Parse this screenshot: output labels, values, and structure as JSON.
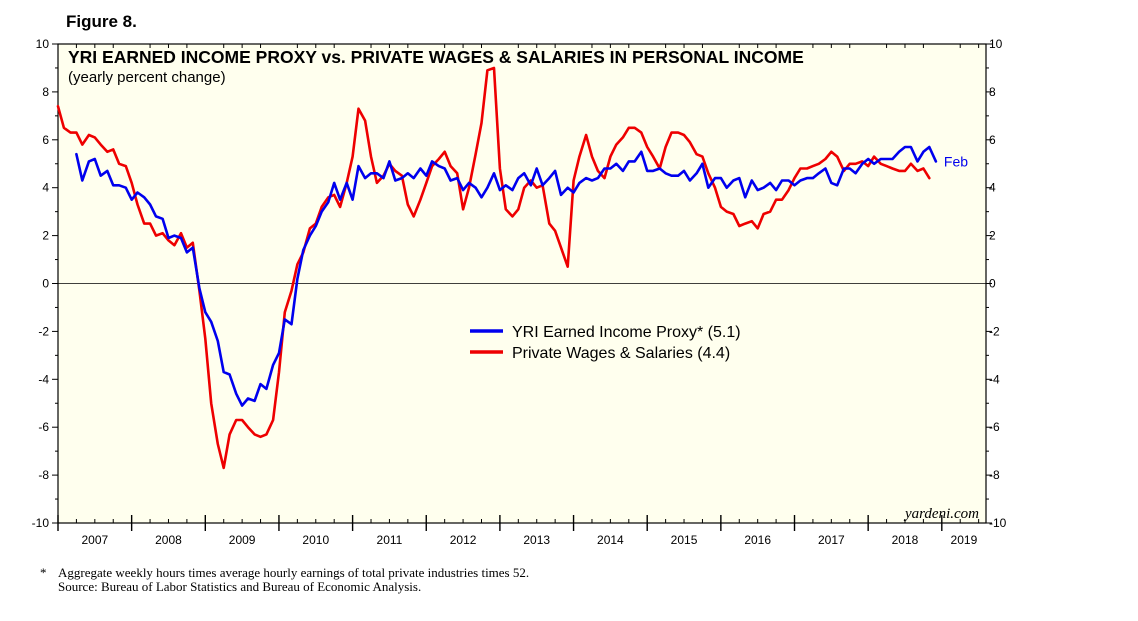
{
  "figure_label": "Figure 8.",
  "footnote": {
    "marker": "*",
    "note": "Aggregate weekly hours times average hourly earnings of total private industries times 52.",
    "source": "Source: Bureau of Labor Statistics and Bureau of Economic Analysis."
  },
  "chart_data": {
    "type": "line",
    "title": "YRI EARNED INCOME PROXY vs. PRIVATE WAGES & SALARIES IN PERSONAL INCOME",
    "subtitle": "(yearly percent change)",
    "xlabel": "",
    "ylabel": "",
    "ylim": [
      -10,
      10
    ],
    "y_ticks": [
      -10,
      -8,
      -6,
      -4,
      -2,
      0,
      2,
      4,
      6,
      8,
      10
    ],
    "xlim": [
      2007.0,
      2019.6
    ],
    "x_tick_labels": [
      "2007",
      "2008",
      "2009",
      "2010",
      "2011",
      "2012",
      "2013",
      "2014",
      "2015",
      "2016",
      "2017",
      "2018",
      "2019"
    ],
    "grid": false,
    "zero_line": true,
    "legend_position": "center-right",
    "watermark": "yardeni.com",
    "end_label": "Feb",
    "series": [
      {
        "name": "YRI Earned Income Proxy* (5.1)",
        "color": "#0000ee",
        "points": [
          [
            2007.25,
            5.4
          ],
          [
            2007.33,
            4.3
          ],
          [
            2007.42,
            5.1
          ],
          [
            2007.5,
            5.2
          ],
          [
            2007.58,
            4.5
          ],
          [
            2007.67,
            4.7
          ],
          [
            2007.75,
            4.1
          ],
          [
            2007.83,
            4.1
          ],
          [
            2007.92,
            4.0
          ],
          [
            2008.0,
            3.5
          ],
          [
            2008.08,
            3.8
          ],
          [
            2008.17,
            3.6
          ],
          [
            2008.25,
            3.3
          ],
          [
            2008.33,
            2.8
          ],
          [
            2008.42,
            2.7
          ],
          [
            2008.5,
            1.9
          ],
          [
            2008.58,
            2.0
          ],
          [
            2008.67,
            1.9
          ],
          [
            2008.75,
            1.3
          ],
          [
            2008.83,
            1.5
          ],
          [
            2008.92,
            -0.2
          ],
          [
            2009.0,
            -1.2
          ],
          [
            2009.08,
            -1.6
          ],
          [
            2009.17,
            -2.4
          ],
          [
            2009.25,
            -3.7
          ],
          [
            2009.33,
            -3.8
          ],
          [
            2009.42,
            -4.6
          ],
          [
            2009.5,
            -5.1
          ],
          [
            2009.58,
            -4.8
          ],
          [
            2009.67,
            -4.9
          ],
          [
            2009.75,
            -4.2
          ],
          [
            2009.83,
            -4.4
          ],
          [
            2009.92,
            -3.4
          ],
          [
            2010.0,
            -2.9
          ],
          [
            2010.08,
            -1.5
          ],
          [
            2010.17,
            -1.7
          ],
          [
            2010.25,
            0.2
          ],
          [
            2010.33,
            1.4
          ],
          [
            2010.42,
            2.0
          ],
          [
            2010.5,
            2.4
          ],
          [
            2010.58,
            3.0
          ],
          [
            2010.67,
            3.4
          ],
          [
            2010.75,
            4.2
          ],
          [
            2010.83,
            3.5
          ],
          [
            2010.92,
            4.2
          ],
          [
            2011.0,
            3.5
          ],
          [
            2011.08,
            4.9
          ],
          [
            2011.17,
            4.4
          ],
          [
            2011.25,
            4.6
          ],
          [
            2011.33,
            4.6
          ],
          [
            2011.42,
            4.4
          ],
          [
            2011.5,
            5.1
          ],
          [
            2011.58,
            4.3
          ],
          [
            2011.67,
            4.4
          ],
          [
            2011.75,
            4.6
          ],
          [
            2011.83,
            4.4
          ],
          [
            2011.92,
            4.8
          ],
          [
            2012.0,
            4.5
          ],
          [
            2012.08,
            5.1
          ],
          [
            2012.17,
            4.9
          ],
          [
            2012.25,
            4.8
          ],
          [
            2012.33,
            4.3
          ],
          [
            2012.42,
            4.4
          ],
          [
            2012.5,
            3.9
          ],
          [
            2012.58,
            4.2
          ],
          [
            2012.67,
            4.0
          ],
          [
            2012.75,
            3.6
          ],
          [
            2012.83,
            4.0
          ],
          [
            2012.92,
            4.6
          ],
          [
            2013.0,
            3.9
          ],
          [
            2013.08,
            4.1
          ],
          [
            2013.17,
            3.9
          ],
          [
            2013.25,
            4.4
          ],
          [
            2013.33,
            4.6
          ],
          [
            2013.42,
            4.1
          ],
          [
            2013.5,
            4.8
          ],
          [
            2013.58,
            4.1
          ],
          [
            2013.67,
            4.4
          ],
          [
            2013.75,
            4.7
          ],
          [
            2013.83,
            3.7
          ],
          [
            2013.92,
            4.0
          ],
          [
            2014.0,
            3.8
          ],
          [
            2014.08,
            4.2
          ],
          [
            2014.17,
            4.4
          ],
          [
            2014.25,
            4.3
          ],
          [
            2014.33,
            4.4
          ],
          [
            2014.42,
            4.8
          ],
          [
            2014.5,
            4.8
          ],
          [
            2014.58,
            5.0
          ],
          [
            2014.67,
            4.7
          ],
          [
            2014.75,
            5.1
          ],
          [
            2014.83,
            5.1
          ],
          [
            2014.92,
            5.5
          ],
          [
            2015.0,
            4.7
          ],
          [
            2015.08,
            4.7
          ],
          [
            2015.17,
            4.8
          ],
          [
            2015.25,
            4.6
          ],
          [
            2015.33,
            4.5
          ],
          [
            2015.42,
            4.5
          ],
          [
            2015.5,
            4.7
          ],
          [
            2015.58,
            4.3
          ],
          [
            2015.67,
            4.6
          ],
          [
            2015.75,
            5.0
          ],
          [
            2015.83,
            4.0
          ],
          [
            2015.92,
            4.4
          ],
          [
            2016.0,
            4.4
          ],
          [
            2016.08,
            4.0
          ],
          [
            2016.17,
            4.3
          ],
          [
            2016.25,
            4.4
          ],
          [
            2016.33,
            3.6
          ],
          [
            2016.42,
            4.3
          ],
          [
            2016.5,
            3.9
          ],
          [
            2016.58,
            4.0
          ],
          [
            2016.67,
            4.2
          ],
          [
            2016.75,
            3.9
          ],
          [
            2016.83,
            4.3
          ],
          [
            2016.92,
            4.3
          ],
          [
            2017.0,
            4.1
          ],
          [
            2017.08,
            4.3
          ],
          [
            2017.17,
            4.4
          ],
          [
            2017.25,
            4.4
          ],
          [
            2017.33,
            4.6
          ],
          [
            2017.42,
            4.8
          ],
          [
            2017.5,
            4.2
          ],
          [
            2017.58,
            4.1
          ],
          [
            2017.67,
            4.8
          ],
          [
            2017.75,
            4.8
          ],
          [
            2017.83,
            4.6
          ],
          [
            2017.92,
            5.0
          ],
          [
            2018.0,
            5.2
          ],
          [
            2018.08,
            5.0
          ],
          [
            2018.17,
            5.2
          ],
          [
            2018.25,
            5.2
          ],
          [
            2018.33,
            5.2
          ],
          [
            2018.42,
            5.5
          ],
          [
            2018.5,
            5.7
          ],
          [
            2018.58,
            5.7
          ],
          [
            2018.67,
            5.1
          ],
          [
            2018.75,
            5.5
          ],
          [
            2018.83,
            5.7
          ],
          [
            2018.92,
            5.1
          ]
        ]
      },
      {
        "name": "Private Wages & Salaries (4.4)",
        "color": "#ee0000",
        "points": [
          [
            2007.0,
            7.4
          ],
          [
            2007.08,
            6.5
          ],
          [
            2007.17,
            6.3
          ],
          [
            2007.25,
            6.3
          ],
          [
            2007.33,
            5.8
          ],
          [
            2007.42,
            6.2
          ],
          [
            2007.5,
            6.1
          ],
          [
            2007.58,
            5.8
          ],
          [
            2007.67,
            5.5
          ],
          [
            2007.75,
            5.6
          ],
          [
            2007.83,
            5.0
          ],
          [
            2007.92,
            4.9
          ],
          [
            2008.0,
            4.2
          ],
          [
            2008.08,
            3.3
          ],
          [
            2008.17,
            2.5
          ],
          [
            2008.25,
            2.5
          ],
          [
            2008.33,
            2.0
          ],
          [
            2008.42,
            2.1
          ],
          [
            2008.5,
            1.8
          ],
          [
            2008.58,
            1.6
          ],
          [
            2008.67,
            2.1
          ],
          [
            2008.75,
            1.5
          ],
          [
            2008.83,
            1.7
          ],
          [
            2008.92,
            -0.3
          ],
          [
            2009.0,
            -2.3
          ],
          [
            2009.08,
            -5.0
          ],
          [
            2009.17,
            -6.7
          ],
          [
            2009.25,
            -7.7
          ],
          [
            2009.33,
            -6.3
          ],
          [
            2009.42,
            -5.7
          ],
          [
            2009.5,
            -5.7
          ],
          [
            2009.58,
            -6.0
          ],
          [
            2009.67,
            -6.3
          ],
          [
            2009.75,
            -6.4
          ],
          [
            2009.83,
            -6.3
          ],
          [
            2009.92,
            -5.7
          ],
          [
            2010.0,
            -3.7
          ],
          [
            2010.08,
            -1.2
          ],
          [
            2010.17,
            -0.3
          ],
          [
            2010.25,
            0.8
          ],
          [
            2010.33,
            1.3
          ],
          [
            2010.42,
            2.3
          ],
          [
            2010.5,
            2.5
          ],
          [
            2010.58,
            3.2
          ],
          [
            2010.67,
            3.6
          ],
          [
            2010.75,
            3.7
          ],
          [
            2010.83,
            3.2
          ],
          [
            2010.92,
            4.2
          ],
          [
            2011.0,
            5.3
          ],
          [
            2011.08,
            7.3
          ],
          [
            2011.17,
            6.8
          ],
          [
            2011.25,
            5.3
          ],
          [
            2011.33,
            4.2
          ],
          [
            2011.42,
            4.5
          ],
          [
            2011.5,
            5.0
          ],
          [
            2011.58,
            4.7
          ],
          [
            2011.67,
            4.5
          ],
          [
            2011.75,
            3.3
          ],
          [
            2011.83,
            2.8
          ],
          [
            2011.92,
            3.5
          ],
          [
            2012.0,
            4.2
          ],
          [
            2012.08,
            4.9
          ],
          [
            2012.17,
            5.2
          ],
          [
            2012.25,
            5.5
          ],
          [
            2012.33,
            4.9
          ],
          [
            2012.42,
            4.6
          ],
          [
            2012.5,
            3.1
          ],
          [
            2012.58,
            4.0
          ],
          [
            2012.67,
            5.4
          ],
          [
            2012.75,
            6.7
          ],
          [
            2012.83,
            8.9
          ],
          [
            2012.92,
            9.0
          ],
          [
            2013.0,
            4.8
          ],
          [
            2013.08,
            3.1
          ],
          [
            2013.17,
            2.8
          ],
          [
            2013.25,
            3.1
          ],
          [
            2013.33,
            4.0
          ],
          [
            2013.42,
            4.3
          ],
          [
            2013.5,
            4.0
          ],
          [
            2013.58,
            4.1
          ],
          [
            2013.67,
            2.5
          ],
          [
            2013.75,
            2.2
          ],
          [
            2013.83,
            1.5
          ],
          [
            2013.92,
            0.7
          ],
          [
            2014.0,
            4.3
          ],
          [
            2014.08,
            5.3
          ],
          [
            2014.17,
            6.2
          ],
          [
            2014.25,
            5.3
          ],
          [
            2014.33,
            4.7
          ],
          [
            2014.42,
            4.4
          ],
          [
            2014.5,
            5.3
          ],
          [
            2014.58,
            5.8
          ],
          [
            2014.67,
            6.1
          ],
          [
            2014.75,
            6.5
          ],
          [
            2014.83,
            6.5
          ],
          [
            2014.92,
            6.3
          ],
          [
            2015.0,
            5.7
          ],
          [
            2015.08,
            5.3
          ],
          [
            2015.17,
            4.8
          ],
          [
            2015.25,
            5.7
          ],
          [
            2015.33,
            6.3
          ],
          [
            2015.42,
            6.3
          ],
          [
            2015.5,
            6.2
          ],
          [
            2015.58,
            5.9
          ],
          [
            2015.67,
            5.4
          ],
          [
            2015.75,
            5.3
          ],
          [
            2015.83,
            4.6
          ],
          [
            2015.92,
            4.0
          ],
          [
            2016.0,
            3.2
          ],
          [
            2016.08,
            3.0
          ],
          [
            2016.17,
            2.9
          ],
          [
            2016.25,
            2.4
          ],
          [
            2016.33,
            2.5
          ],
          [
            2016.42,
            2.6
          ],
          [
            2016.5,
            2.3
          ],
          [
            2016.58,
            2.9
          ],
          [
            2016.67,
            3.0
          ],
          [
            2016.75,
            3.5
          ],
          [
            2016.83,
            3.5
          ],
          [
            2016.92,
            3.9
          ],
          [
            2017.0,
            4.4
          ],
          [
            2017.08,
            4.8
          ],
          [
            2017.17,
            4.8
          ],
          [
            2017.25,
            4.9
          ],
          [
            2017.33,
            5.0
          ],
          [
            2017.42,
            5.2
          ],
          [
            2017.5,
            5.5
          ],
          [
            2017.58,
            5.3
          ],
          [
            2017.67,
            4.7
          ],
          [
            2017.75,
            5.0
          ],
          [
            2017.83,
            5.0
          ],
          [
            2017.92,
            5.1
          ],
          [
            2018.0,
            4.9
          ],
          [
            2018.08,
            5.3
          ],
          [
            2018.17,
            5.0
          ],
          [
            2018.25,
            4.9
          ],
          [
            2018.33,
            4.8
          ],
          [
            2018.42,
            4.7
          ],
          [
            2018.5,
            4.7
          ],
          [
            2018.58,
            5.0
          ],
          [
            2018.67,
            4.7
          ],
          [
            2018.75,
            4.8
          ],
          [
            2018.83,
            4.4
          ]
        ]
      }
    ]
  }
}
